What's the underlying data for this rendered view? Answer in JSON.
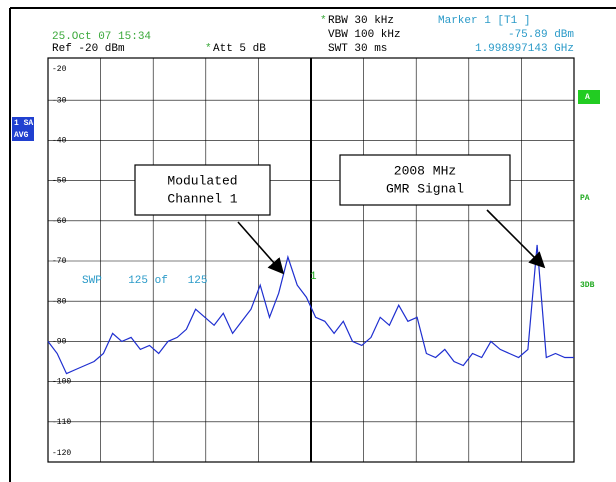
{
  "header": {
    "date": "25.Oct 07 15:34",
    "ref": "Ref -20 dBm",
    "att_star": "*",
    "att": "Att  5 dB",
    "rbw_star": "*",
    "rbw": "RBW 30 kHz",
    "vbw": "VBW 100 kHz",
    "swt": "SWT 30 ms",
    "marker_title": "Marker 1 [T1 ]",
    "marker_level": "-75.89 dBm",
    "marker_freq": "1.998997143 GHz"
  },
  "side": {
    "left": [
      "1 SA",
      "AVG"
    ],
    "right_badge": "A",
    "right_labels": [
      "PA",
      "3DB"
    ]
  },
  "chart_data": {
    "type": "line",
    "series": [
      {
        "color": "#1f2fd0",
        "values": [
          -90,
          -93,
          -98,
          -97,
          -96,
          -95,
          -93,
          -88,
          -90,
          -89,
          -92,
          -91,
          -93,
          -90,
          -89,
          -87,
          -82,
          -84,
          -86,
          -83,
          -88,
          -85,
          -82,
          -76,
          -84,
          -78,
          -69,
          -76,
          -79,
          -84,
          -85,
          -88,
          -85,
          -90,
          -91,
          -89,
          -84,
          -86,
          -81,
          -85,
          -84,
          -93,
          -94,
          -92,
          -95,
          -96,
          -93,
          -94,
          -90,
          -92,
          -93,
          -94,
          -92,
          -66,
          -94,
          -93,
          -94,
          -94
        ]
      }
    ],
    "ylim": [
      -20,
      -120
    ],
    "yticks": [
      -20,
      -30,
      -40,
      -50,
      -60,
      -70,
      -80,
      -90,
      -100,
      -110,
      -120
    ],
    "grid": true,
    "sweep": "SWP    125 of   125",
    "marker_label": "1",
    "annotations": [
      {
        "lines": [
          "Modulated",
          "Channel 1"
        ]
      },
      {
        "lines": [
          "2008 MHz",
          "GMR Signal"
        ]
      }
    ]
  }
}
